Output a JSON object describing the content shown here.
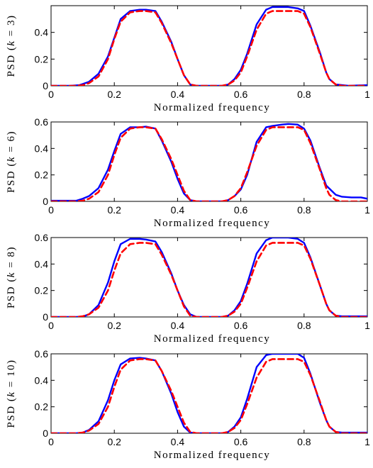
{
  "colors": {
    "estimate": "#0000ff",
    "true_psd": "#ff0000",
    "axes": "#000000",
    "background": "#ffffff"
  },
  "chart_data": [
    {
      "type": "line",
      "xlabel": "Normalized frequency",
      "ylabel": {
        "prefix": "PSD",
        "var": "k",
        "rest": " = 3"
      },
      "xlim": [
        0,
        1
      ],
      "ylim": [
        0,
        0.6
      ],
      "xticks": [
        "0",
        "0.2",
        "0.4",
        "0.6",
        "0.8",
        "1"
      ],
      "yticks": [
        "0",
        "0.2",
        "0.4"
      ],
      "series": [
        {
          "style": "solid",
          "color": "#0000ff",
          "x": [
            0,
            0.06,
            0.09,
            0.12,
            0.15,
            0.18,
            0.2,
            0.22,
            0.25,
            0.28,
            0.3,
            0.33,
            0.35,
            0.38,
            0.4,
            0.42,
            0.44,
            0.46,
            0.5,
            0.54,
            0.56,
            0.58,
            0.6,
            0.62,
            0.65,
            0.68,
            0.7,
            0.73,
            0.75,
            0.78,
            0.8,
            0.82,
            0.85,
            0.87,
            0.88,
            0.9,
            0.94,
            1.0
          ],
          "y": [
            0,
            0,
            0.005,
            0.03,
            0.09,
            0.22,
            0.36,
            0.5,
            0.56,
            0.57,
            0.57,
            0.56,
            0.48,
            0.33,
            0.2,
            0.08,
            0.01,
            0,
            0,
            0,
            0.01,
            0.05,
            0.12,
            0.24,
            0.46,
            0.57,
            0.59,
            0.59,
            0.59,
            0.58,
            0.56,
            0.45,
            0.25,
            0.1,
            0.05,
            0.01,
            0,
            0.005
          ]
        },
        {
          "style": "dashed",
          "color": "#ff0000",
          "x": [
            0,
            0.08,
            0.1,
            0.12,
            0.15,
            0.18,
            0.2,
            0.22,
            0.25,
            0.28,
            0.3,
            0.33,
            0.35,
            0.38,
            0.4,
            0.42,
            0.44,
            0.46,
            0.5,
            0.54,
            0.56,
            0.58,
            0.6,
            0.62,
            0.65,
            0.68,
            0.7,
            0.73,
            0.75,
            0.78,
            0.8,
            0.82,
            0.85,
            0.87,
            0.88,
            0.9,
            0.92,
            1.0
          ],
          "y": [
            0,
            0,
            0.005,
            0.02,
            0.07,
            0.2,
            0.35,
            0.48,
            0.55,
            0.56,
            0.56,
            0.55,
            0.47,
            0.32,
            0.2,
            0.08,
            0.01,
            0,
            0,
            0,
            0.01,
            0.04,
            0.1,
            0.22,
            0.42,
            0.54,
            0.56,
            0.56,
            0.56,
            0.56,
            0.54,
            0.44,
            0.24,
            0.1,
            0.05,
            0.01,
            0,
            0
          ]
        }
      ]
    },
    {
      "type": "line",
      "xlabel": "Normalized frequency",
      "ylabel": {
        "prefix": "PSD",
        "var": "k",
        "rest": " = 6"
      },
      "xlim": [
        0,
        1
      ],
      "ylim": [
        0,
        0.6
      ],
      "xticks": [
        "0",
        "0.2",
        "0.4",
        "0.6",
        "0.8",
        "1"
      ],
      "yticks": [
        "0",
        "0.2",
        "0.4",
        "0.6"
      ],
      "series": [
        {
          "style": "solid",
          "color": "#0000ff",
          "x": [
            0,
            0.08,
            0.1,
            0.12,
            0.15,
            0.18,
            0.2,
            0.22,
            0.25,
            0.28,
            0.3,
            0.33,
            0.35,
            0.38,
            0.4,
            0.42,
            0.44,
            0.46,
            0.5,
            0.54,
            0.56,
            0.58,
            0.6,
            0.62,
            0.65,
            0.68,
            0.7,
            0.73,
            0.75,
            0.78,
            0.8,
            0.82,
            0.85,
            0.87,
            0.9,
            0.92,
            0.95,
            0.98,
            1.0
          ],
          "y": [
            0.005,
            0.005,
            0.02,
            0.04,
            0.1,
            0.24,
            0.38,
            0.51,
            0.56,
            0.56,
            0.565,
            0.55,
            0.46,
            0.3,
            0.17,
            0.06,
            0.01,
            0,
            0,
            0,
            0.01,
            0.04,
            0.09,
            0.2,
            0.45,
            0.56,
            0.57,
            0.58,
            0.585,
            0.58,
            0.55,
            0.46,
            0.25,
            0.12,
            0.05,
            0.035,
            0.03,
            0.03,
            0.02
          ]
        },
        {
          "style": "dashed",
          "color": "#ff0000",
          "x": [
            0,
            0.08,
            0.1,
            0.12,
            0.15,
            0.18,
            0.2,
            0.22,
            0.25,
            0.28,
            0.3,
            0.33,
            0.35,
            0.38,
            0.4,
            0.42,
            0.44,
            0.46,
            0.5,
            0.54,
            0.56,
            0.58,
            0.6,
            0.62,
            0.65,
            0.68,
            0.7,
            0.73,
            0.75,
            0.78,
            0.8,
            0.82,
            0.85,
            0.87,
            0.88,
            0.9,
            0.92,
            1.0
          ],
          "y": [
            0,
            0,
            0.005,
            0.02,
            0.07,
            0.2,
            0.35,
            0.48,
            0.55,
            0.56,
            0.56,
            0.55,
            0.47,
            0.32,
            0.2,
            0.08,
            0.01,
            0,
            0,
            0,
            0.01,
            0.04,
            0.1,
            0.22,
            0.42,
            0.54,
            0.56,
            0.56,
            0.56,
            0.56,
            0.54,
            0.44,
            0.24,
            0.1,
            0.05,
            0.01,
            0,
            0
          ]
        }
      ]
    },
    {
      "type": "line",
      "xlabel": "Normalized frequency",
      "ylabel": {
        "prefix": "PSD",
        "var": "k",
        "rest": " = 8"
      },
      "xlim": [
        0,
        1
      ],
      "ylim": [
        0,
        0.6
      ],
      "xticks": [
        "0",
        "0.2",
        "0.4",
        "0.6",
        "0.8",
        "1"
      ],
      "yticks": [
        "0",
        "0.2",
        "0.4",
        "0.6"
      ],
      "series": [
        {
          "style": "solid",
          "color": "#0000ff",
          "x": [
            0,
            0.08,
            0.1,
            0.12,
            0.15,
            0.18,
            0.2,
            0.22,
            0.25,
            0.28,
            0.3,
            0.33,
            0.35,
            0.38,
            0.4,
            0.42,
            0.44,
            0.46,
            0.5,
            0.54,
            0.56,
            0.58,
            0.6,
            0.62,
            0.65,
            0.68,
            0.7,
            0.73,
            0.75,
            0.78,
            0.8,
            0.82,
            0.85,
            0.87,
            0.88,
            0.9,
            0.92,
            0.96,
            1.0
          ],
          "y": [
            0,
            0,
            0.003,
            0.02,
            0.09,
            0.26,
            0.42,
            0.55,
            0.59,
            0.59,
            0.585,
            0.57,
            0.49,
            0.33,
            0.2,
            0.09,
            0.02,
            0,
            0,
            0,
            0.01,
            0.05,
            0.12,
            0.25,
            0.48,
            0.58,
            0.6,
            0.6,
            0.6,
            0.59,
            0.56,
            0.45,
            0.24,
            0.1,
            0.05,
            0.01,
            0.005,
            0.005,
            0.005
          ]
        },
        {
          "style": "dashed",
          "color": "#ff0000",
          "x": [
            0,
            0.08,
            0.1,
            0.12,
            0.15,
            0.18,
            0.2,
            0.22,
            0.25,
            0.28,
            0.3,
            0.33,
            0.35,
            0.38,
            0.4,
            0.42,
            0.44,
            0.46,
            0.5,
            0.54,
            0.56,
            0.58,
            0.6,
            0.62,
            0.65,
            0.68,
            0.7,
            0.73,
            0.75,
            0.78,
            0.8,
            0.82,
            0.85,
            0.87,
            0.88,
            0.9,
            0.92,
            1.0
          ],
          "y": [
            0,
            0,
            0.005,
            0.02,
            0.07,
            0.2,
            0.35,
            0.48,
            0.55,
            0.56,
            0.56,
            0.55,
            0.47,
            0.32,
            0.2,
            0.08,
            0.01,
            0,
            0,
            0,
            0.01,
            0.04,
            0.1,
            0.22,
            0.42,
            0.54,
            0.56,
            0.56,
            0.56,
            0.56,
            0.54,
            0.44,
            0.24,
            0.1,
            0.05,
            0.01,
            0,
            0
          ]
        }
      ]
    },
    {
      "type": "line",
      "xlabel": "Normalized frequency",
      "ylabel": {
        "prefix": "PSD",
        "var": "k",
        "rest": " = 10"
      },
      "xlim": [
        0,
        1
      ],
      "ylim": [
        0,
        0.6
      ],
      "xticks": [
        "0",
        "0.2",
        "0.4",
        "0.6",
        "0.8",
        "1"
      ],
      "yticks": [
        "0",
        "0.2",
        "0.4",
        "0.6"
      ],
      "series": [
        {
          "style": "solid",
          "color": "#0000ff",
          "x": [
            0,
            0.08,
            0.1,
            0.12,
            0.15,
            0.18,
            0.2,
            0.22,
            0.25,
            0.28,
            0.3,
            0.33,
            0.35,
            0.38,
            0.4,
            0.42,
            0.44,
            0.46,
            0.5,
            0.54,
            0.56,
            0.58,
            0.6,
            0.62,
            0.65,
            0.68,
            0.7,
            0.73,
            0.75,
            0.78,
            0.8,
            0.82,
            0.85,
            0.87,
            0.88,
            0.9,
            0.92,
            0.96,
            1.0
          ],
          "y": [
            0,
            0,
            0.005,
            0.025,
            0.09,
            0.25,
            0.4,
            0.52,
            0.565,
            0.57,
            0.565,
            0.55,
            0.47,
            0.3,
            0.16,
            0.05,
            0.005,
            0,
            0,
            0,
            0.01,
            0.05,
            0.12,
            0.26,
            0.5,
            0.59,
            0.6,
            0.6,
            0.6,
            0.6,
            0.57,
            0.45,
            0.23,
            0.1,
            0.05,
            0.01,
            0.005,
            0.005,
            0.005
          ]
        },
        {
          "style": "dashed",
          "color": "#ff0000",
          "x": [
            0,
            0.08,
            0.1,
            0.12,
            0.15,
            0.18,
            0.2,
            0.22,
            0.25,
            0.28,
            0.3,
            0.33,
            0.35,
            0.38,
            0.4,
            0.42,
            0.44,
            0.46,
            0.5,
            0.54,
            0.56,
            0.58,
            0.6,
            0.62,
            0.65,
            0.68,
            0.7,
            0.73,
            0.75,
            0.78,
            0.8,
            0.82,
            0.85,
            0.87,
            0.88,
            0.9,
            0.92,
            1.0
          ],
          "y": [
            0,
            0,
            0.005,
            0.02,
            0.07,
            0.2,
            0.35,
            0.48,
            0.55,
            0.56,
            0.56,
            0.55,
            0.47,
            0.32,
            0.2,
            0.08,
            0.01,
            0,
            0,
            0,
            0.01,
            0.04,
            0.1,
            0.22,
            0.42,
            0.54,
            0.56,
            0.56,
            0.56,
            0.56,
            0.54,
            0.44,
            0.24,
            0.1,
            0.05,
            0.01,
            0,
            0
          ]
        }
      ]
    }
  ]
}
